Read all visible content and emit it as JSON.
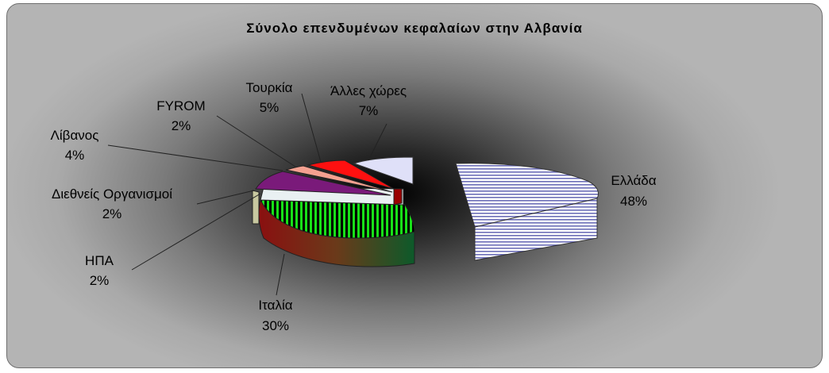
{
  "chart_data": {
    "type": "pie",
    "title": "Σύνολο επενδυμένων κεφαλαίων στην Αλβανία",
    "slices": [
      {
        "name": "Ελλάδα",
        "pct_label": "48%",
        "value": 48,
        "color": "#d8dcf2"
      },
      {
        "name": "Ιταλία",
        "pct_label": "30%",
        "value": 30,
        "color": "#0b5d2a"
      },
      {
        "name": "ΗΠΑ",
        "pct_label": "2%",
        "value": 2,
        "color": "#e9f0f2"
      },
      {
        "name": "Διεθνείς Οργανισμοί",
        "pct_label": "2%",
        "value": 2,
        "color": "#c8c8a0"
      },
      {
        "name": "Λίβανος",
        "pct_label": "4%",
        "value": 4,
        "color": "#7a1a7a"
      },
      {
        "name": "FYROM",
        "pct_label": "2%",
        "value": 2,
        "color": "#f4a090"
      },
      {
        "name": "Τουρκία",
        "pct_label": "5%",
        "value": 5,
        "color": "#ff1010"
      },
      {
        "name": "Άλλες χώρες",
        "pct_label": "7%",
        "value": 7,
        "color": "#dfe0f8"
      }
    ]
  }
}
